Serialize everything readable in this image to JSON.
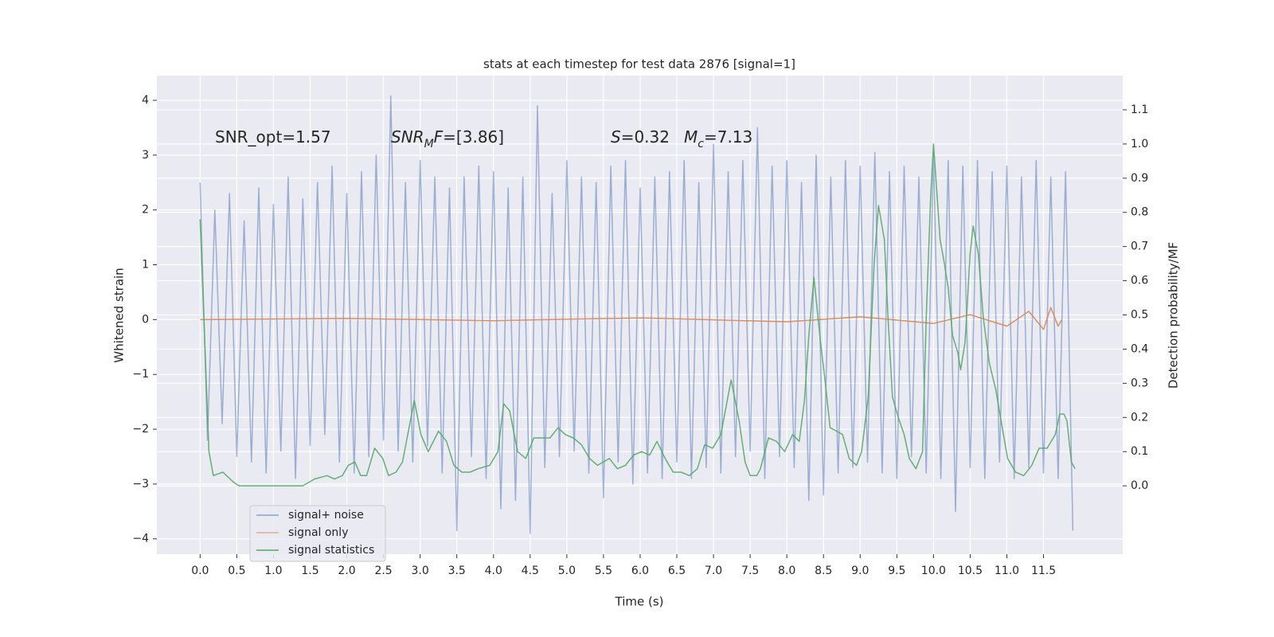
{
  "chart_data": {
    "type": "line",
    "title": "stats at each timestep for test data 2876 [signal=1]",
    "x_label": "Time (s)",
    "y_label": "Whitened strain",
    "y2_label": "Detection probability/MF",
    "annotations": [
      [
        {
          "text": "SNR_opt=1.57"
        }
      ],
      [
        {
          "text": "SNR",
          "italic": true
        },
        {
          "text": "M",
          "italic": true,
          "sub": true
        },
        {
          "text": "F",
          "italic": true
        },
        {
          "text": "=[3.86]"
        }
      ],
      [
        {
          "text": "S",
          "italic": true
        },
        {
          "text": "=0.32"
        }
      ],
      [
        {
          "text": "M",
          "italic": true
        },
        {
          "text": "c",
          "italic": true,
          "sub": true
        },
        {
          "text": "=7.13"
        }
      ]
    ],
    "xlim": [
      -0.59,
      12.58
    ],
    "ylim": [
      -4.28,
      4.45
    ],
    "y2lim": [
      -0.2,
      1.2
    ],
    "xticks": [
      {
        "value": 0,
        "label": "0.0"
      },
      0.5,
      {
        "value": 1,
        "label": "1.0"
      },
      1.5,
      {
        "value": 2,
        "label": "2.0"
      },
      2.5,
      {
        "value": 3,
        "label": "3.0"
      },
      3.5,
      {
        "value": 4,
        "label": "4.0"
      },
      4.5,
      {
        "value": 5,
        "label": "5.0"
      },
      5.5,
      {
        "value": 6,
        "label": "6.0"
      },
      6.5,
      {
        "value": 7,
        "label": "7.0"
      },
      7.5,
      {
        "value": 8,
        "label": "8.0"
      },
      8.5,
      {
        "value": 9,
        "label": "9.0"
      },
      9.5,
      {
        "value": 10,
        "label": "10.0"
      },
      10.5,
      {
        "value": 11,
        "label": "11.0"
      },
      11.5
    ],
    "yticks": [
      {
        "value": -4,
        "label": "−4"
      },
      {
        "value": -3,
        "label": "−3"
      },
      {
        "value": -2,
        "label": "−2"
      },
      {
        "value": -1,
        "label": "−1"
      },
      0,
      1,
      2,
      3,
      4
    ],
    "y2ticks": [
      {
        "value": 0,
        "label": "0.0"
      },
      0.1,
      0.2,
      0.3,
      0.4,
      0.5,
      0.6,
      0.7,
      0.8,
      0.9,
      {
        "value": 1,
        "label": "1.0"
      },
      1.1
    ],
    "grid": true,
    "legend": "lower left",
    "series": [
      {
        "name": "signal+ noise",
        "color": "#4c72b0",
        "x": [
          0,
          0.1,
          0.2,
          0.3,
          0.4,
          0.5,
          0.6,
          0.7,
          0.8,
          0.9,
          1,
          1.1,
          1.2,
          1.3,
          1.4,
          1.5,
          1.6,
          1.7,
          1.8,
          1.9,
          2,
          2.1,
          2.2,
          2.3,
          2.4,
          2.5,
          2.6,
          2.7,
          2.8,
          2.9,
          3,
          3.1,
          3.2,
          3.3,
          3.4,
          3.5,
          3.6,
          3.7,
          3.8,
          3.9,
          4,
          4.1,
          4.2,
          4.3,
          4.4,
          4.5,
          4.6,
          4.7,
          4.8,
          4.9,
          5,
          5.1,
          5.2,
          5.3,
          5.4,
          5.5,
          5.6,
          5.7,
          5.8,
          5.9,
          6,
          6.1,
          6.2,
          6.3,
          6.4,
          6.5,
          6.6,
          6.7,
          6.8,
          6.9,
          7,
          7.1,
          7.2,
          7.3,
          7.4,
          7.5,
          7.6,
          7.7,
          7.8,
          7.9,
          8,
          8.1,
          8.2,
          8.3,
          8.4,
          8.5,
          8.6,
          8.7,
          8.8,
          8.9,
          9,
          9.1,
          9.2,
          9.3,
          9.4,
          9.5,
          9.6,
          9.7,
          9.8,
          9.9,
          10,
          10.1,
          10.2,
          10.3,
          10.4,
          10.5,
          10.6,
          10.7,
          10.8,
          10.9,
          11,
          11.1,
          11.2,
          11.3,
          11.4,
          11.5,
          11.6,
          11.7,
          11.8,
          11.9
        ],
        "values": [
          2.5,
          -2.2,
          2.0,
          -1.9,
          2.3,
          -2.5,
          1.8,
          -2.6,
          2.4,
          -2.8,
          2.1,
          -2.4,
          2.6,
          -2.9,
          2.2,
          -2.3,
          2.5,
          -2.1,
          2.8,
          -2.6,
          2.3,
          -2.8,
          2.7,
          -2.5,
          3.0,
          -2.2,
          4.08,
          -2.4,
          2.5,
          -2.6,
          2.9,
          -2.3,
          2.6,
          -2.8,
          2.4,
          -3.85,
          2.6,
          -2.5,
          2.8,
          -2.9,
          2.7,
          -3.45,
          2.4,
          -3.3,
          2.6,
          -3.9,
          3.9,
          -2.7,
          2.3,
          -2.5,
          2.9,
          -2.4,
          2.6,
          -2.8,
          2.5,
          -3.25,
          2.8,
          -2.6,
          2.9,
          -3.0,
          2.4,
          -2.8,
          2.6,
          -2.9,
          2.7,
          -2.6,
          2.9,
          -2.9,
          2.5,
          -2.7,
          3.2,
          -2.8,
          2.7,
          -2.5,
          2.9,
          -2.4,
          3.5,
          -2.9,
          2.8,
          -2.5,
          2.9,
          -2.7,
          2.5,
          -3.3,
          3.0,
          -3.2,
          2.6,
          -2.8,
          2.9,
          -2.7,
          2.8,
          -2.6,
          3.05,
          -2.8,
          2.7,
          -2.9,
          2.8,
          -2.5,
          2.6,
          -2.8,
          3.0,
          -2.9,
          2.9,
          -3.5,
          2.8,
          -2.7,
          2.9,
          -2.9,
          2.7,
          -2.6,
          2.8,
          -2.9,
          2.6,
          -2.7,
          2.9,
          -2.8,
          2.6,
          -2.9,
          2.7,
          -3.85
        ]
      },
      {
        "name": "signal only",
        "color": "#dd8452",
        "x": [
          0,
          2,
          4,
          6,
          8,
          9,
          10,
          10.5,
          11,
          11.3,
          11.5,
          11.6,
          11.7,
          11.75
        ],
        "values": [
          0,
          0.02,
          -0.02,
          0.03,
          -0.04,
          0.05,
          -0.07,
          0.09,
          -0.12,
          0.15,
          -0.18,
          0.22,
          -0.12,
          0
        ]
      },
      {
        "name": "signal statistics",
        "color": "#55a868",
        "axis": "y2",
        "x": [
          0,
          0.12,
          0.18,
          0.31,
          0.46,
          0.53,
          0.86,
          1.4,
          1.56,
          1.73,
          1.83,
          1.94,
          2.02,
          2.11,
          2.19,
          2.27,
          2.38,
          2.49,
          2.57,
          2.67,
          2.76,
          2.84,
          2.92,
          3.01,
          3.11,
          3.25,
          3.36,
          3.46,
          3.57,
          3.68,
          3.79,
          3.95,
          4.06,
          4.14,
          4.22,
          4.33,
          4.44,
          4.55,
          4.66,
          4.77,
          4.88,
          4.98,
          5.09,
          5.2,
          5.31,
          5.42,
          5.58,
          5.69,
          5.8,
          5.91,
          6.02,
          6.13,
          6.23,
          6.34,
          6.45,
          6.56,
          6.67,
          6.78,
          6.88,
          6.99,
          7.1,
          7.24,
          7.35,
          7.43,
          7.5,
          7.59,
          7.64,
          7.75,
          7.86,
          7.97,
          8.08,
          8.17,
          8.24,
          8.3,
          8.37,
          8.46,
          8.52,
          8.59,
          8.68,
          8.76,
          8.85,
          8.95,
          9.02,
          9.11,
          9.19,
          9.25,
          9.33,
          9.38,
          9.44,
          9.52,
          9.6,
          9.67,
          9.76,
          9.85,
          9.9,
          9.96,
          10,
          10.09,
          10.14,
          10.2,
          10.26,
          10.33,
          10.37,
          10.43,
          10.5,
          10.54,
          10.61,
          10.68,
          10.76,
          10.85,
          10.93,
          11.01,
          11.12,
          11.23,
          11.34,
          11.44,
          11.55,
          11.66,
          11.72,
          11.78,
          11.82,
          11.88,
          11.93
        ],
        "values": [
          0.78,
          0.1,
          0.03,
          0.04,
          0.01,
          0,
          0,
          0,
          0.02,
          0.03,
          0.02,
          0.03,
          0.06,
          0.07,
          0.03,
          0.03,
          0.11,
          0.08,
          0.03,
          0.04,
          0.07,
          0.16,
          0.25,
          0.15,
          0.1,
          0.16,
          0.13,
          0.06,
          0.04,
          0.04,
          0.05,
          0.06,
          0.1,
          0.24,
          0.22,
          0.1,
          0.08,
          0.14,
          0.14,
          0.14,
          0.17,
          0.15,
          0.14,
          0.12,
          0.08,
          0.06,
          0.08,
          0.05,
          0.06,
          0.09,
          0.1,
          0.09,
          0.13,
          0.08,
          0.04,
          0.04,
          0.03,
          0.05,
          0.12,
          0.11,
          0.15,
          0.31,
          0.19,
          0.07,
          0.03,
          0.03,
          0.05,
          0.14,
          0.13,
          0.1,
          0.15,
          0.13,
          0.25,
          0.44,
          0.61,
          0.42,
          0.31,
          0.17,
          0.16,
          0.15,
          0.08,
          0.06,
          0.1,
          0.26,
          0.65,
          0.82,
          0.72,
          0.49,
          0.26,
          0.2,
          0.15,
          0.08,
          0.05,
          0.1,
          0.49,
          0.84,
          1.0,
          0.72,
          0.66,
          0.58,
          0.44,
          0.39,
          0.34,
          0.42,
          0.68,
          0.76,
          0.68,
          0.49,
          0.36,
          0.28,
          0.18,
          0.08,
          0.04,
          0.03,
          0.06,
          0.11,
          0.11,
          0.15,
          0.21,
          0.21,
          0.19,
          0.07,
          0.05
        ]
      }
    ]
  }
}
